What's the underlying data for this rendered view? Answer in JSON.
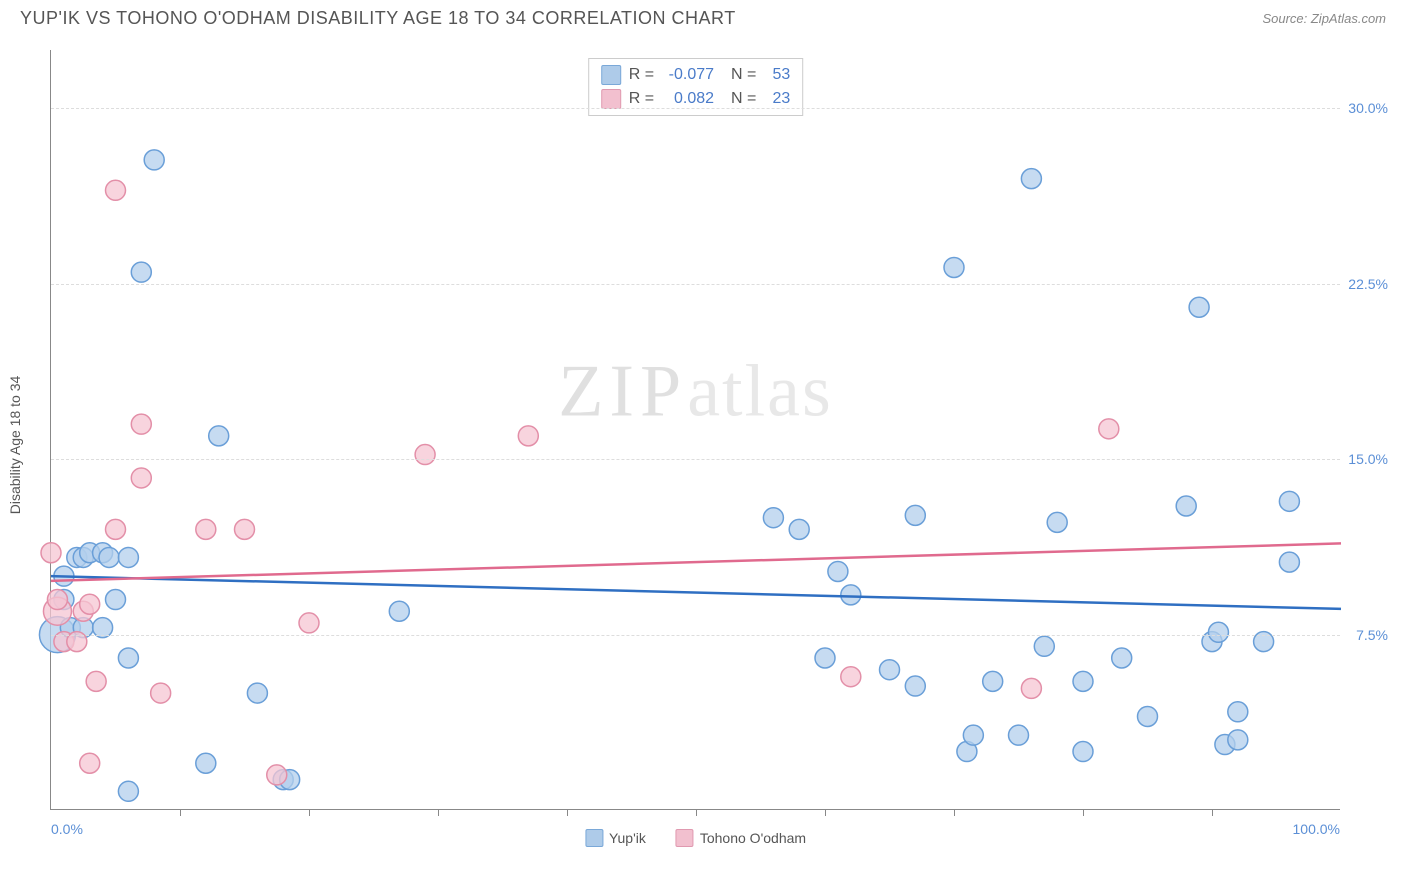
{
  "title": "YUP'IK VS TOHONO O'ODHAM DISABILITY AGE 18 TO 34 CORRELATION CHART",
  "source": "Source: ZipAtlas.com",
  "y_axis_label": "Disability Age 18 to 34",
  "watermark_a": "ZIP",
  "watermark_b": "atlas",
  "chart": {
    "type": "scatter",
    "xlim": [
      0,
      100
    ],
    "ylim": [
      0,
      32.5
    ],
    "x_ticks_minor": [
      10,
      20,
      30,
      40,
      50,
      60,
      70,
      80,
      90
    ],
    "x_tick_labels": [
      {
        "pos": 0,
        "label": "0.0%",
        "align": "left"
      },
      {
        "pos": 100,
        "label": "100.0%",
        "align": "right"
      }
    ],
    "y_ticks": [
      {
        "pos": 7.5,
        "label": "7.5%"
      },
      {
        "pos": 15.0,
        "label": "15.0%"
      },
      {
        "pos": 22.5,
        "label": "22.5%"
      },
      {
        "pos": 30.0,
        "label": "30.0%"
      }
    ],
    "grid_color": "#dddddd",
    "axis_color": "#888888",
    "series": [
      {
        "name": "Yup'ik",
        "color_fill": "#b3cfec",
        "color_stroke": "#6a9fd8",
        "swatch_fill": "#aecbe9",
        "swatch_stroke": "#7aa8d8",
        "marker_radius": 10,
        "line_color": "#2f6fc2",
        "line_width": 2.5,
        "regression": {
          "x1": 0,
          "y1": 10.0,
          "x2": 100,
          "y2": 8.6
        },
        "stats": {
          "R": "-0.077",
          "N": "53"
        },
        "points": [
          {
            "x": 0.5,
            "y": 7.5,
            "r": 18
          },
          {
            "x": 1,
            "y": 9
          },
          {
            "x": 1,
            "y": 10
          },
          {
            "x": 2,
            "y": 10.8
          },
          {
            "x": 2.5,
            "y": 10.8
          },
          {
            "x": 3,
            "y": 11
          },
          {
            "x": 4,
            "y": 11
          },
          {
            "x": 4.5,
            "y": 10.8
          },
          {
            "x": 6,
            "y": 10.8
          },
          {
            "x": 1.5,
            "y": 7.8
          },
          {
            "x": 2.5,
            "y": 7.8
          },
          {
            "x": 4,
            "y": 7.8
          },
          {
            "x": 5,
            "y": 9
          },
          {
            "x": 6,
            "y": 6.5
          },
          {
            "x": 6,
            "y": 0.8
          },
          {
            "x": 8,
            "y": 27.8
          },
          {
            "x": 7,
            "y": 23
          },
          {
            "x": 12,
            "y": 2
          },
          {
            "x": 16,
            "y": 5
          },
          {
            "x": 13,
            "y": 16
          },
          {
            "x": 18,
            "y": 1.3
          },
          {
            "x": 18.5,
            "y": 1.3
          },
          {
            "x": 27,
            "y": 8.5
          },
          {
            "x": 56,
            "y": 12.5
          },
          {
            "x": 58,
            "y": 12
          },
          {
            "x": 61,
            "y": 10.2
          },
          {
            "x": 60,
            "y": 6.5
          },
          {
            "x": 62,
            "y": 9.2
          },
          {
            "x": 65,
            "y": 6
          },
          {
            "x": 67,
            "y": 12.6
          },
          {
            "x": 67,
            "y": 5.3
          },
          {
            "x": 70,
            "y": 23.2
          },
          {
            "x": 71,
            "y": 2.5
          },
          {
            "x": 71.5,
            "y": 3.2
          },
          {
            "x": 73,
            "y": 5.5
          },
          {
            "x": 75,
            "y": 3.2
          },
          {
            "x": 76,
            "y": 27
          },
          {
            "x": 77,
            "y": 7
          },
          {
            "x": 78,
            "y": 12.3
          },
          {
            "x": 80,
            "y": 2.5
          },
          {
            "x": 80,
            "y": 5.5
          },
          {
            "x": 83,
            "y": 6.5
          },
          {
            "x": 85,
            "y": 4
          },
          {
            "x": 88,
            "y": 13
          },
          {
            "x": 89,
            "y": 21.5
          },
          {
            "x": 90,
            "y": 7.2
          },
          {
            "x": 90.5,
            "y": 7.6
          },
          {
            "x": 91,
            "y": 2.8
          },
          {
            "x": 92,
            "y": 3
          },
          {
            "x": 92,
            "y": 4.2
          },
          {
            "x": 94,
            "y": 7.2
          },
          {
            "x": 96,
            "y": 13.2
          },
          {
            "x": 96,
            "y": 10.6
          }
        ]
      },
      {
        "name": "Tohono O'odham",
        "color_fill": "#f5c6d3",
        "color_stroke": "#e38fa8",
        "swatch_fill": "#f2c0cf",
        "swatch_stroke": "#e099b0",
        "marker_radius": 10,
        "line_color": "#e06a8e",
        "line_width": 2.5,
        "regression": {
          "x1": 0,
          "y1": 9.8,
          "x2": 100,
          "y2": 11.4
        },
        "stats": {
          "R": "0.082",
          "N": "23"
        },
        "points": [
          {
            "x": 0.5,
            "y": 8.5,
            "r": 14
          },
          {
            "x": 0,
            "y": 11
          },
          {
            "x": 0.5,
            "y": 9
          },
          {
            "x": 1,
            "y": 7.2
          },
          {
            "x": 2,
            "y": 7.2
          },
          {
            "x": 2.5,
            "y": 8.5
          },
          {
            "x": 3,
            "y": 8.8
          },
          {
            "x": 3.5,
            "y": 5.5
          },
          {
            "x": 3,
            "y": 2
          },
          {
            "x": 5,
            "y": 12
          },
          {
            "x": 5,
            "y": 26.5
          },
          {
            "x": 7,
            "y": 16.5
          },
          {
            "x": 7,
            "y": 14.2
          },
          {
            "x": 8.5,
            "y": 5
          },
          {
            "x": 12,
            "y": 12
          },
          {
            "x": 15,
            "y": 12
          },
          {
            "x": 17.5,
            "y": 1.5
          },
          {
            "x": 20,
            "y": 8
          },
          {
            "x": 29,
            "y": 15.2
          },
          {
            "x": 37,
            "y": 16
          },
          {
            "x": 62,
            "y": 5.7
          },
          {
            "x": 76,
            "y": 5.2
          },
          {
            "x": 82,
            "y": 16.3
          }
        ]
      }
    ],
    "bottom_legend": [
      {
        "label": "Yup'ik",
        "fill": "#aecbe9",
        "stroke": "#7aa8d8"
      },
      {
        "label": "Tohono O'odham",
        "fill": "#f2c0cf",
        "stroke": "#e099b0"
      }
    ]
  }
}
